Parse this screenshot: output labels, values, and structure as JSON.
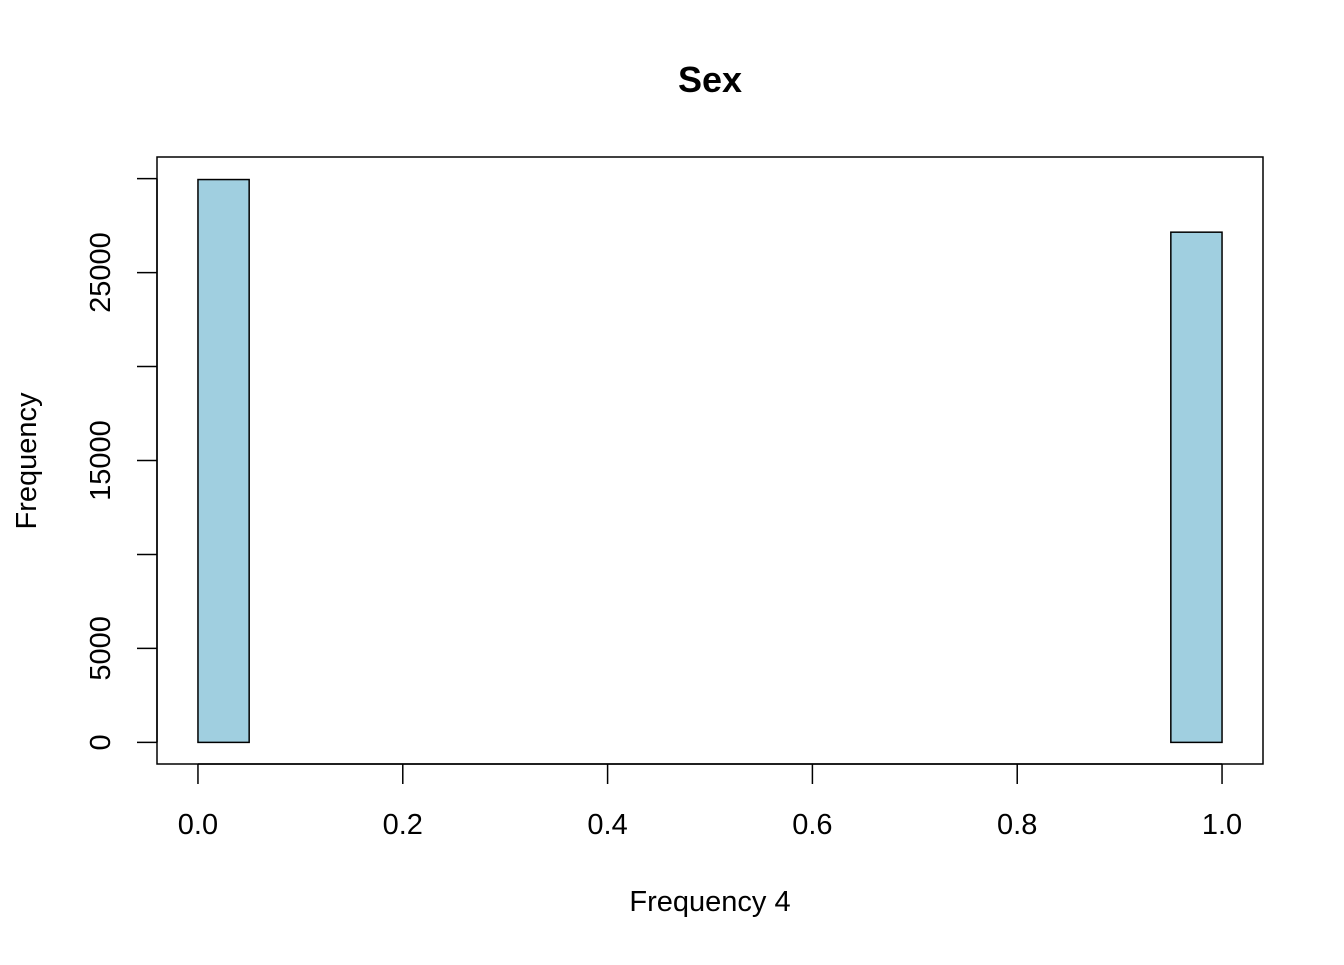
{
  "chart_data": {
    "type": "bar",
    "subtype": "histogram",
    "title": "Sex",
    "xlabel": "Frequency 4",
    "ylabel": "Frequency",
    "x_ticks": [
      "0.0",
      "0.2",
      "0.4",
      "0.6",
      "0.8",
      "1.0"
    ],
    "x_tick_values": [
      0.0,
      0.2,
      0.4,
      0.6,
      0.8,
      1.0
    ],
    "y_ticks": [
      "0",
      "5000",
      "15000",
      "25000"
    ],
    "y_tick_values": [
      0,
      5000,
      15000,
      25000
    ],
    "y_minor_ticks": [
      10000,
      20000,
      30000
    ],
    "xlim": [
      -0.04,
      1.04
    ],
    "ylim": [
      -1150,
      31150
    ],
    "bin_width": 0.05,
    "bins": [
      {
        "start": 0.0,
        "end": 0.05,
        "count": 29950
      },
      {
        "start": 0.95,
        "end": 1.0,
        "count": 27150
      }
    ],
    "grid": false,
    "bar_fill": "#a0cfe0",
    "bar_stroke": "#000000"
  }
}
